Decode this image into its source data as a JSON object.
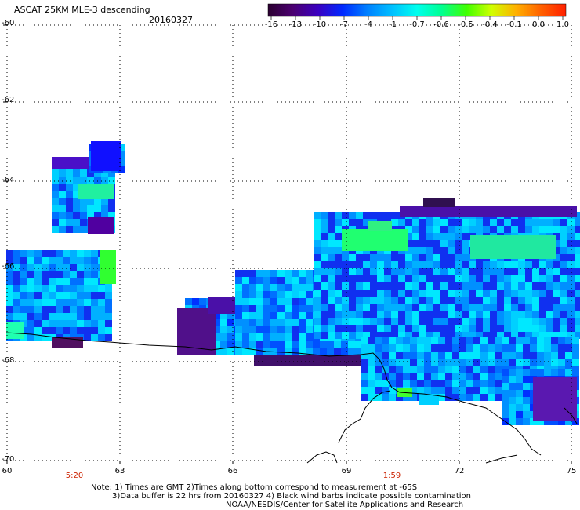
{
  "header": {
    "title": "ASCAT 25KM MLE-3 descending",
    "date": "20160327"
  },
  "colorbar": {
    "labels": [
      "-16",
      "-13",
      "-10",
      "-7",
      "-4",
      "-1",
      "-0.7",
      "-0.6",
      "-0.5",
      "-0.4",
      "-0.1",
      "0.0",
      "1.0"
    ],
    "colors": [
      "#2a0030",
      "#4b0070",
      "#3a00c0",
      "#0028ff",
      "#0080ff",
      "#00c0ff",
      "#00ffee",
      "#00ff90",
      "#40ff00",
      "#d0ff00",
      "#ffb000",
      "#ff6000",
      "#ff2000"
    ]
  },
  "axes": {
    "y_ticks": [
      "-60",
      "-62",
      "-64",
      "-66",
      "-68",
      "-70"
    ],
    "x_ticks": [
      "60",
      "63",
      "66",
      "69",
      "72",
      "75"
    ],
    "times": [
      {
        "label": "5:20",
        "lon": 61.8
      },
      {
        "label": "1:59",
        "lon": 70.2
      }
    ]
  },
  "notes": {
    "line1": "Note: 1) Times are GMT 2)Times along bottom correspond to measurement at -65S",
    "line2": "3)Data buffer is 22 hrs from 20160327 4) Black wind barbs indicate possible contamination",
    "line3": "NOAA/NESDIS/Center for Satellite Applications and Research"
  },
  "colors": {
    "grid": "#000000",
    "coast": "#000000",
    "time_label": "#cc2200"
  }
}
